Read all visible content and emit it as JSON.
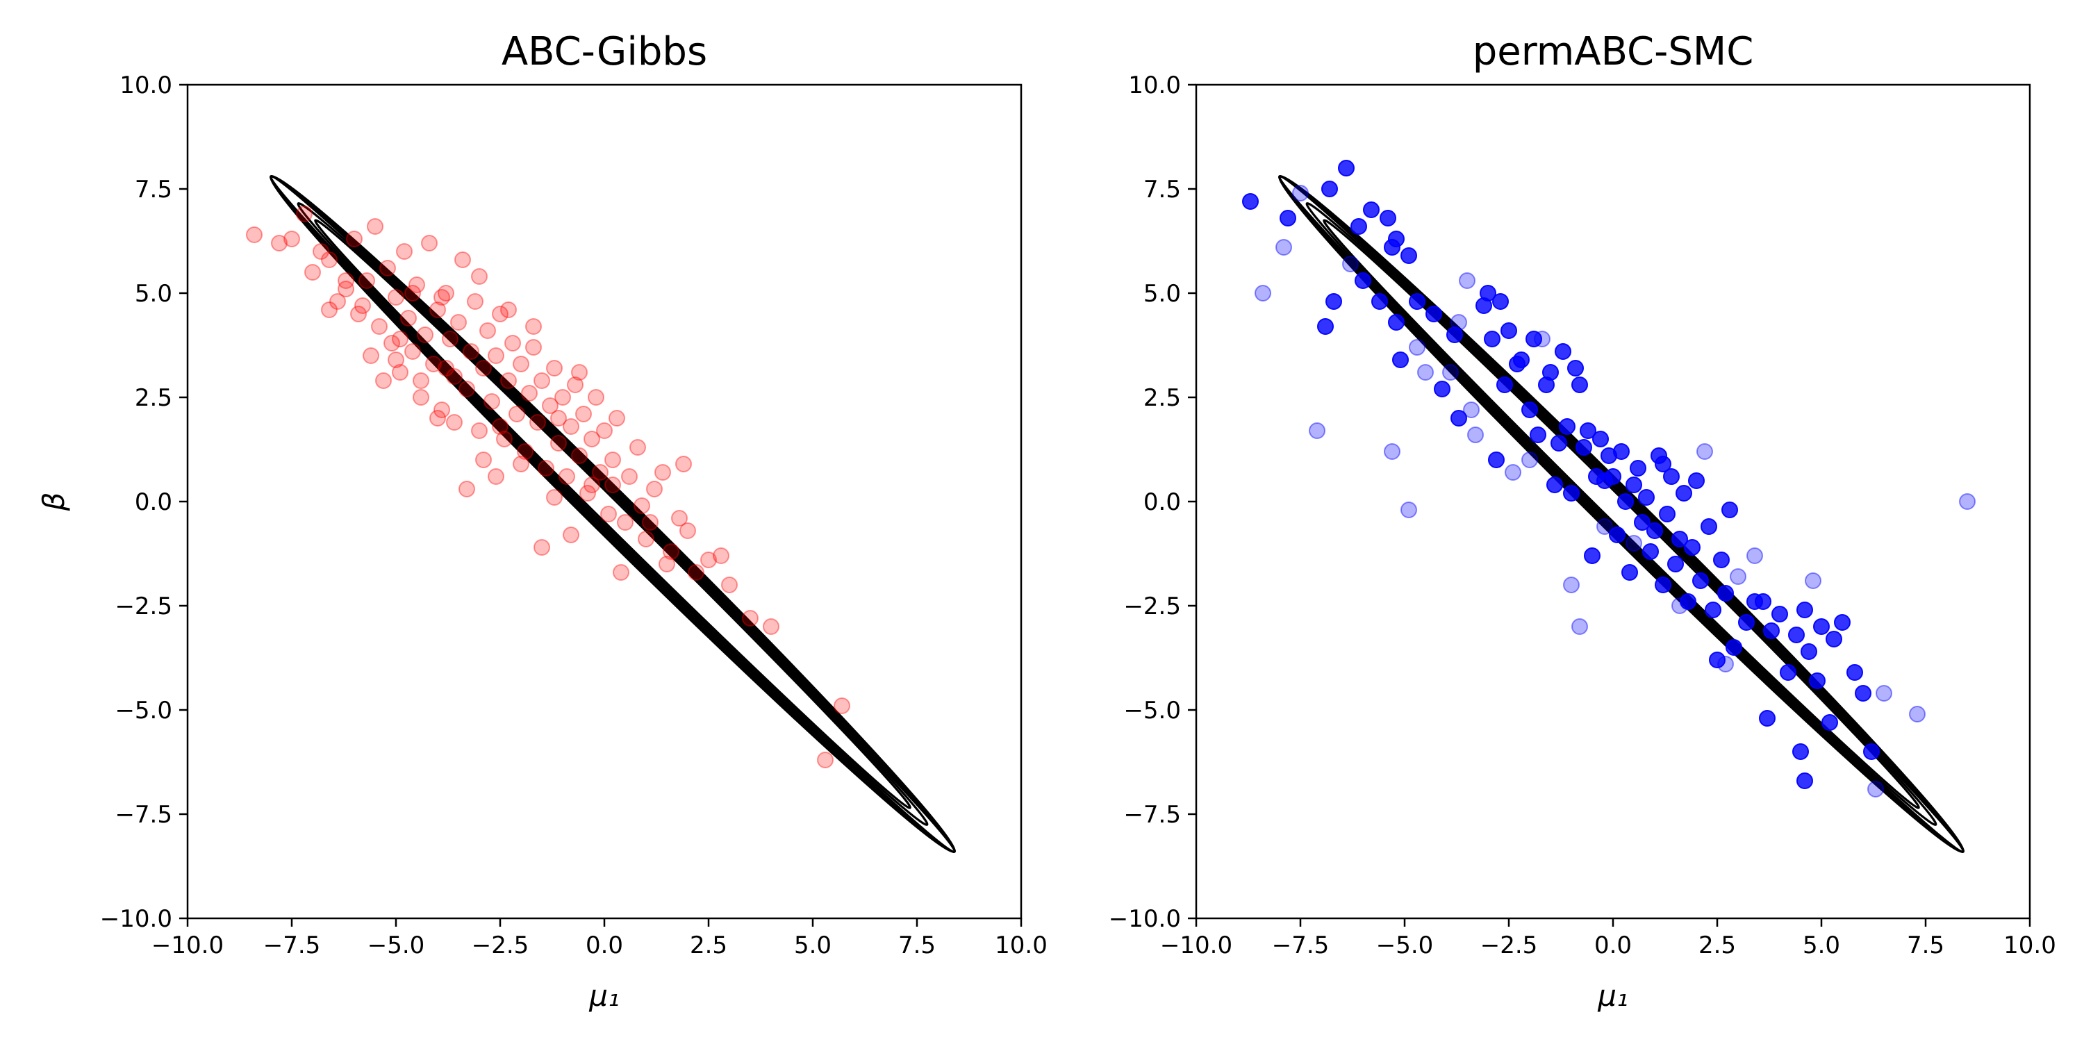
{
  "chart_data": [
    {
      "type": "scatter",
      "title": "ABC-Gibbs",
      "xlabel": "μ₁",
      "ylabel": "β",
      "xlim": [
        -10,
        10
      ],
      "ylim": [
        -10,
        10
      ],
      "xticks": [
        "−10.0",
        "−7.5",
        "−5.0",
        "−2.5",
        "0.0",
        "2.5",
        "5.0",
        "7.5",
        "10.0"
      ],
      "yticks": [
        "−10.0",
        "−7.5",
        "−5.0",
        "−2.5",
        "0.0",
        "2.5",
        "5.0",
        "7.5",
        "10.0"
      ],
      "grid": false,
      "point_color": "#ff0000",
      "point_alpha": 0.25,
      "contour_color": "#000000",
      "contour_note": "posterior density contours along line beta = -mu1, from (-8.0, 7.8) to (8.4, -8.4)",
      "points": [
        [
          -8.4,
          6.4
        ],
        [
          -7.8,
          6.2
        ],
        [
          -7.5,
          6.3
        ],
        [
          -7.2,
          6.9
        ],
        [
          -7.0,
          5.5
        ],
        [
          -6.8,
          6.0
        ],
        [
          -6.6,
          5.8
        ],
        [
          -6.4,
          4.8
        ],
        [
          -6.2,
          5.1
        ],
        [
          -6.0,
          6.3
        ],
        [
          -5.9,
          4.5
        ],
        [
          -5.7,
          5.3
        ],
        [
          -5.6,
          3.5
        ],
        [
          -5.5,
          6.6
        ],
        [
          -5.4,
          4.2
        ],
        [
          -5.3,
          2.9
        ],
        [
          -5.2,
          5.6
        ],
        [
          -5.1,
          3.8
        ],
        [
          -5.0,
          4.9
        ],
        [
          -4.9,
          3.1
        ],
        [
          -4.8,
          6.0
        ],
        [
          -4.7,
          4.4
        ],
        [
          -4.6,
          3.6
        ],
        [
          -4.5,
          5.2
        ],
        [
          -4.4,
          2.5
        ],
        [
          -4.3,
          4.0
        ],
        [
          -4.2,
          6.2
        ],
        [
          -4.1,
          3.3
        ],
        [
          -4.0,
          4.6
        ],
        [
          -3.9,
          2.2
        ],
        [
          -3.8,
          5.0
        ],
        [
          -3.7,
          3.9
        ],
        [
          -3.6,
          3.0
        ],
        [
          -3.5,
          4.3
        ],
        [
          -3.4,
          5.8
        ],
        [
          -3.3,
          2.7
        ],
        [
          -3.2,
          3.6
        ],
        [
          -3.1,
          4.8
        ],
        [
          -3.0,
          1.7
        ],
        [
          -2.9,
          3.2
        ],
        [
          -2.8,
          4.1
        ],
        [
          -2.7,
          2.4
        ],
        [
          -2.6,
          3.5
        ],
        [
          -2.5,
          4.5
        ],
        [
          -2.4,
          1.5
        ],
        [
          -2.3,
          2.9
        ],
        [
          -2.2,
          3.8
        ],
        [
          -2.1,
          2.1
        ],
        [
          -2.0,
          3.3
        ],
        [
          -1.9,
          1.2
        ],
        [
          -1.8,
          2.6
        ],
        [
          -1.7,
          3.7
        ],
        [
          -1.6,
          1.9
        ],
        [
          -1.5,
          2.9
        ],
        [
          -1.4,
          0.8
        ],
        [
          -1.3,
          2.3
        ],
        [
          -1.2,
          3.2
        ],
        [
          -1.1,
          1.4
        ],
        [
          -1.0,
          2.5
        ],
        [
          -0.9,
          0.6
        ],
        [
          -0.8,
          1.8
        ],
        [
          -0.7,
          2.8
        ],
        [
          -0.6,
          1.1
        ],
        [
          -0.5,
          2.1
        ],
        [
          -0.4,
          0.2
        ],
        [
          -0.3,
          1.5
        ],
        [
          -0.2,
          2.5
        ],
        [
          -0.1,
          0.7
        ],
        [
          0.0,
          1.7
        ],
        [
          0.1,
          -0.3
        ],
        [
          0.2,
          1.0
        ],
        [
          0.3,
          2.0
        ],
        [
          0.5,
          -0.5
        ],
        [
          0.6,
          0.6
        ],
        [
          0.8,
          1.3
        ],
        [
          1.0,
          -0.9
        ],
        [
          1.2,
          0.3
        ],
        [
          1.4,
          0.7
        ],
        [
          1.6,
          -1.2
        ],
        [
          1.8,
          -0.4
        ],
        [
          2.0,
          -0.7
        ],
        [
          2.2,
          -1.7
        ],
        [
          2.5,
          -1.4
        ],
        [
          2.8,
          -1.3
        ],
        [
          3.0,
          -2.0
        ],
        [
          3.5,
          -2.8
        ],
        [
          4.0,
          -3.0
        ],
        [
          5.7,
          -4.9
        ],
        [
          5.3,
          -6.2
        ],
        [
          -1.5,
          -1.1
        ],
        [
          -2.6,
          0.6
        ],
        [
          -3.3,
          0.3
        ],
        [
          -4.9,
          3.9
        ],
        [
          -3.9,
          4.9
        ],
        [
          -6.2,
          5.3
        ],
        [
          -5.0,
          3.4
        ],
        [
          -2.0,
          0.9
        ],
        [
          -0.8,
          -0.8
        ],
        [
          0.4,
          -1.7
        ],
        [
          1.9,
          0.9
        ],
        [
          -4.4,
          2.9
        ],
        [
          -3.6,
          1.9
        ],
        [
          -2.9,
          1.0
        ],
        [
          -1.2,
          0.1
        ],
        [
          -0.3,
          0.4
        ],
        [
          0.9,
          -0.1
        ],
        [
          -4.0,
          2.0
        ],
        [
          -3.0,
          5.4
        ],
        [
          -2.3,
          4.6
        ],
        [
          -1.7,
          4.2
        ],
        [
          -0.6,
          3.1
        ],
        [
          -6.6,
          4.6
        ],
        [
          -5.8,
          4.7
        ],
        [
          -4.6,
          5.0
        ],
        [
          -3.8,
          3.2
        ],
        [
          -2.5,
          1.8
        ],
        [
          -1.1,
          2.0
        ],
        [
          0.2,
          0.4
        ],
        [
          1.1,
          -0.5
        ],
        [
          1.5,
          -1.5
        ]
      ]
    },
    {
      "type": "scatter",
      "title": "permABC-SMC",
      "xlabel": "μ₁",
      "ylabel": "",
      "xlim": [
        -10,
        10
      ],
      "ylim": [
        -10,
        10
      ],
      "xticks": [
        "−10.0",
        "−7.5",
        "−5.0",
        "−2.5",
        "0.0",
        "2.5",
        "5.0",
        "7.5",
        "10.0"
      ],
      "yticks": [
        "−10.0",
        "−7.5",
        "−5.0",
        "−2.5",
        "0.0",
        "2.5",
        "5.0",
        "7.5",
        "10.0"
      ],
      "grid": false,
      "point_color": "#0000ff",
      "contour_color": "#000000",
      "contour_note": "posterior density contours along line beta = -mu1, from (-8.0, 7.8) to (8.4, -8.4)",
      "points": [
        [
          -8.7,
          7.2,
          0.8
        ],
        [
          -8.4,
          5.0,
          0.3
        ],
        [
          -7.9,
          6.1,
          0.3
        ],
        [
          -7.8,
          6.8,
          0.8
        ],
        [
          -7.5,
          7.4,
          0.3
        ],
        [
          -7.1,
          1.7,
          0.3
        ],
        [
          -6.9,
          4.2,
          0.8
        ],
        [
          -6.8,
          7.5,
          0.8
        ],
        [
          -6.7,
          4.8,
          0.8
        ],
        [
          -6.4,
          8.0,
          0.8
        ],
        [
          -6.3,
          5.7,
          0.3
        ],
        [
          -6.1,
          6.6,
          0.8
        ],
        [
          -6.0,
          5.3,
          0.8
        ],
        [
          -5.8,
          7.0,
          0.8
        ],
        [
          -5.6,
          4.8,
          0.8
        ],
        [
          -5.4,
          6.8,
          0.8
        ],
        [
          -5.3,
          6.1,
          0.8
        ],
        [
          -5.2,
          4.3,
          0.8
        ],
        [
          -5.1,
          3.4,
          0.8
        ],
        [
          -5.3,
          1.2,
          0.3
        ],
        [
          -4.9,
          -0.2,
          0.3
        ],
        [
          -4.9,
          5.9,
          0.8
        ],
        [
          -4.7,
          4.8,
          0.8
        ],
        [
          -4.5,
          3.1,
          0.3
        ],
        [
          -4.3,
          4.5,
          0.8
        ],
        [
          -4.1,
          2.7,
          0.8
        ],
        [
          -3.9,
          3.1,
          0.3
        ],
        [
          -3.8,
          4.0,
          0.8
        ],
        [
          -3.7,
          2.0,
          0.8
        ],
        [
          -3.5,
          5.3,
          0.3
        ],
        [
          -3.3,
          1.6,
          0.3
        ],
        [
          -3.1,
          4.7,
          0.8
        ],
        [
          -3.0,
          5.0,
          0.8
        ],
        [
          -2.9,
          3.9,
          0.8
        ],
        [
          -2.8,
          1.0,
          0.8
        ],
        [
          -2.7,
          4.8,
          0.8
        ],
        [
          -2.6,
          2.8,
          0.8
        ],
        [
          -2.5,
          4.1,
          0.8
        ],
        [
          -2.4,
          0.7,
          0.3
        ],
        [
          -2.3,
          3.3,
          0.8
        ],
        [
          -2.2,
          3.4,
          0.8
        ],
        [
          -2.0,
          2.2,
          0.8
        ],
        [
          -1.9,
          3.9,
          0.8
        ],
        [
          -1.8,
          1.6,
          0.8
        ],
        [
          -1.6,
          2.8,
          0.8
        ],
        [
          -1.5,
          3.1,
          0.8
        ],
        [
          -1.4,
          0.4,
          0.8
        ],
        [
          -1.3,
          1.4,
          0.8
        ],
        [
          -1.2,
          3.6,
          0.8
        ],
        [
          -1.1,
          1.8,
          0.8
        ],
        [
          -1.0,
          0.2,
          0.8
        ],
        [
          -0.9,
          3.2,
          0.8
        ],
        [
          -0.8,
          2.8,
          0.8
        ],
        [
          -0.7,
          1.3,
          0.8
        ],
        [
          -0.6,
          1.7,
          0.8
        ],
        [
          -0.5,
          -1.3,
          0.8
        ],
        [
          -0.4,
          0.6,
          0.8
        ],
        [
          -0.3,
          1.5,
          0.8
        ],
        [
          -0.2,
          0.5,
          0.8
        ],
        [
          -0.1,
          1.1,
          0.8
        ],
        [
          0.0,
          0.6,
          0.8
        ],
        [
          0.1,
          -0.8,
          0.8
        ],
        [
          0.2,
          1.2,
          0.8
        ],
        [
          0.3,
          0.0,
          0.8
        ],
        [
          0.4,
          -1.7,
          0.8
        ],
        [
          0.5,
          0.4,
          0.8
        ],
        [
          0.6,
          0.8,
          0.8
        ],
        [
          0.7,
          -0.5,
          0.8
        ],
        [
          0.8,
          0.1,
          0.8
        ],
        [
          0.9,
          -1.2,
          0.8
        ],
        [
          1.0,
          -0.7,
          0.8
        ],
        [
          1.1,
          1.1,
          0.8
        ],
        [
          1.2,
          -2.0,
          0.8
        ],
        [
          1.3,
          -0.3,
          0.8
        ],
        [
          1.4,
          0.6,
          0.8
        ],
        [
          1.5,
          -1.5,
          0.8
        ],
        [
          1.6,
          -0.9,
          0.8
        ],
        [
          1.7,
          0.2,
          0.8
        ],
        [
          1.8,
          -2.4,
          0.8
        ],
        [
          1.9,
          -1.1,
          0.8
        ],
        [
          2.0,
          0.5,
          0.8
        ],
        [
          2.1,
          -1.9,
          0.8
        ],
        [
          2.2,
          1.2,
          0.3
        ],
        [
          2.3,
          -0.6,
          0.8
        ],
        [
          2.4,
          -2.6,
          0.8
        ],
        [
          2.5,
          -3.8,
          0.8
        ],
        [
          2.6,
          -1.4,
          0.8
        ],
        [
          2.7,
          -2.2,
          0.8
        ],
        [
          2.8,
          -0.2,
          0.8
        ],
        [
          2.9,
          -3.5,
          0.8
        ],
        [
          3.0,
          -1.8,
          0.3
        ],
        [
          3.2,
          -2.9,
          0.8
        ],
        [
          3.4,
          -1.3,
          0.3
        ],
        [
          3.6,
          -2.4,
          0.8
        ],
        [
          3.7,
          -5.2,
          0.8
        ],
        [
          3.8,
          -3.1,
          0.8
        ],
        [
          4.0,
          -2.7,
          0.8
        ],
        [
          4.2,
          -4.1,
          0.8
        ],
        [
          4.4,
          -3.2,
          0.8
        ],
        [
          4.5,
          -6.0,
          0.8
        ],
        [
          4.6,
          -2.6,
          0.8
        ],
        [
          4.7,
          -3.6,
          0.8
        ],
        [
          4.8,
          -1.9,
          0.3
        ],
        [
          4.9,
          -4.3,
          0.8
        ],
        [
          5.0,
          -3.0,
          0.8
        ],
        [
          5.2,
          -5.3,
          0.8
        ],
        [
          5.3,
          -3.3,
          0.8
        ],
        [
          5.5,
          -2.9,
          0.8
        ],
        [
          5.8,
          -4.1,
          0.8
        ],
        [
          6.0,
          -4.6,
          0.8
        ],
        [
          6.2,
          -6.0,
          0.8
        ],
        [
          6.5,
          -4.6,
          0.3
        ],
        [
          7.3,
          -5.1,
          0.3
        ],
        [
          8.5,
          0.0,
          0.3
        ],
        [
          -4.7,
          3.7,
          0.3
        ],
        [
          -3.7,
          4.3,
          0.3
        ],
        [
          -0.8,
          -3.0,
          0.3
        ],
        [
          -1.0,
          -2.0,
          0.3
        ],
        [
          0.5,
          -1.0,
          0.3
        ],
        [
          -2.0,
          1.0,
          0.3
        ],
        [
          4.6,
          -6.7,
          0.8
        ],
        [
          6.3,
          -6.9,
          0.3
        ],
        [
          -1.7,
          3.9,
          0.3
        ],
        [
          -5.2,
          6.3,
          0.8
        ],
        [
          2.7,
          -3.9,
          0.3
        ],
        [
          1.2,
          0.9,
          0.8
        ],
        [
          -0.2,
          -0.6,
          0.3
        ],
        [
          3.4,
          -2.4,
          0.8
        ],
        [
          -3.4,
          2.2,
          0.3
        ],
        [
          1.6,
          -2.5,
          0.3
        ]
      ]
    }
  ]
}
